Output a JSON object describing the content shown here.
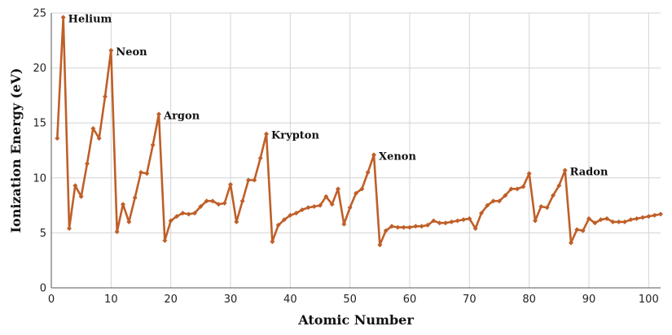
{
  "chart_data": {
    "type": "line",
    "title": "",
    "xlabel": "Atomic Number",
    "ylabel": "Ionization Energy (eV)",
    "xlim": [
      0,
      102
    ],
    "ylim": [
      0,
      25
    ],
    "xticks": [
      0,
      10,
      20,
      30,
      40,
      50,
      60,
      70,
      80,
      90,
      100
    ],
    "yticks": [
      0,
      5,
      10,
      15,
      20,
      25
    ],
    "grid": true,
    "legend": "none",
    "color": "#bf5f28",
    "x": [
      1,
      2,
      3,
      4,
      5,
      6,
      7,
      8,
      9,
      10,
      11,
      12,
      13,
      14,
      15,
      16,
      17,
      18,
      19,
      20,
      21,
      22,
      23,
      24,
      25,
      26,
      27,
      28,
      29,
      30,
      31,
      32,
      33,
      34,
      35,
      36,
      37,
      38,
      39,
      40,
      41,
      42,
      43,
      44,
      45,
      46,
      47,
      48,
      49,
      50,
      51,
      52,
      53,
      54,
      55,
      56,
      57,
      58,
      59,
      60,
      61,
      62,
      63,
      64,
      65,
      66,
      67,
      68,
      69,
      70,
      71,
      72,
      73,
      74,
      75,
      76,
      77,
      78,
      79,
      80,
      81,
      82,
      83,
      84,
      85,
      86,
      87,
      88,
      89,
      90,
      91,
      92,
      93,
      94,
      95,
      96,
      97,
      98,
      99,
      100,
      101,
      102
    ],
    "y": [
      13.6,
      24.6,
      5.4,
      9.3,
      8.3,
      11.3,
      14.5,
      13.6,
      17.4,
      21.6,
      5.1,
      7.6,
      6.0,
      8.2,
      10.5,
      10.4,
      13.0,
      15.8,
      4.3,
      6.1,
      6.5,
      6.8,
      6.7,
      6.8,
      7.4,
      7.9,
      7.9,
      7.6,
      7.7,
      9.4,
      6.0,
      7.9,
      9.8,
      9.8,
      11.8,
      14.0,
      4.2,
      5.7,
      6.2,
      6.6,
      6.8,
      7.1,
      7.3,
      7.4,
      7.5,
      8.3,
      7.6,
      9.0,
      5.8,
      7.3,
      8.6,
      9.0,
      10.5,
      12.1,
      3.9,
      5.2,
      5.6,
      5.5,
      5.5,
      5.5,
      5.6,
      5.6,
      5.7,
      6.1,
      5.9,
      5.9,
      6.0,
      6.1,
      6.2,
      6.3,
      5.4,
      6.8,
      7.5,
      7.9,
      7.9,
      8.4,
      9.0,
      9.0,
      9.2,
      10.4,
      6.1,
      7.4,
      7.3,
      8.4,
      9.3,
      10.7,
      4.1,
      5.3,
      5.2,
      6.3,
      5.9,
      6.2,
      6.3,
      6.0,
      6.0,
      6.0,
      6.2,
      6.3,
      6.4,
      6.5,
      6.6,
      6.7
    ],
    "annotations": [
      {
        "x": 2,
        "y": 24.6,
        "text": "Helium"
      },
      {
        "x": 10,
        "y": 21.6,
        "text": "Neon"
      },
      {
        "x": 18,
        "y": 15.8,
        "text": "Argon"
      },
      {
        "x": 36,
        "y": 14.0,
        "text": "Krypton"
      },
      {
        "x": 54,
        "y": 12.1,
        "text": "Xenon"
      },
      {
        "x": 86,
        "y": 10.7,
        "text": "Radon"
      }
    ]
  }
}
